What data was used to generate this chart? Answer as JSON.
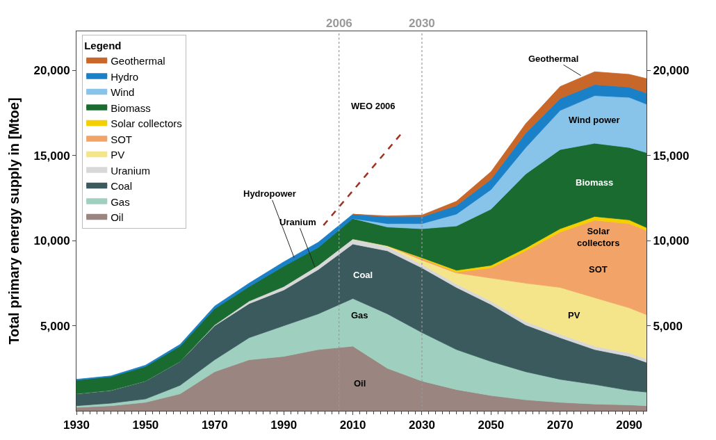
{
  "chart_data": {
    "type": "area",
    "stacked": true,
    "ylabel": "Total primary energy supply in [Mtoe]",
    "legend_title": "Legend",
    "legend": "top left",
    "x": [
      1930,
      1940,
      1950,
      1960,
      1970,
      1980,
      1990,
      2000,
      2010,
      2020,
      2030,
      2040,
      2050,
      2060,
      2070,
      2080,
      2090,
      2095
    ],
    "xlim": [
      1930,
      2095
    ],
    "xticks": [
      1930,
      1950,
      1970,
      1990,
      2010,
      2030,
      2050,
      2070,
      2090
    ],
    "ylim": [
      0,
      22300
    ],
    "yticks": [
      {
        "value": 5000,
        "label": "5,000"
      },
      {
        "value": 10000,
        "label": "10,000"
      },
      {
        "value": 15000,
        "label": "15,000"
      },
      {
        "value": 20000,
        "label": "20,000"
      }
    ],
    "y2lim": [
      0,
      22300
    ],
    "y2ticks": [
      {
        "value": 5000,
        "label": "5,000"
      },
      {
        "value": 10000,
        "label": "10,000"
      },
      {
        "value": 15000,
        "label": "15,000"
      },
      {
        "value": 20000,
        "label": "20,000"
      }
    ],
    "series": [
      {
        "name": "Oil",
        "color": "#9a8580",
        "values": [
          200,
          300,
          500,
          1000,
          2300,
          3000,
          3200,
          3600,
          3800,
          2500,
          1750,
          1250,
          900,
          650,
          500,
          400,
          350,
          300
        ]
      },
      {
        "name": "Gas",
        "color": "#9fcfbf",
        "values": [
          100,
          150,
          200,
          500,
          700,
          1300,
          1800,
          2100,
          2800,
          3200,
          2850,
          2350,
          2000,
          1650,
          1350,
          1150,
          850,
          800
        ]
      },
      {
        "name": "Coal",
        "color": "#3b5a5e",
        "values": [
          700,
          750,
          1050,
          1400,
          2000,
          2000,
          2100,
          2600,
          3200,
          3700,
          3800,
          3650,
          3350,
          2750,
          2450,
          2050,
          2000,
          1750
        ]
      },
      {
        "name": "Uranium",
        "color": "#d8d8d8",
        "values": [
          0,
          0,
          0,
          0,
          50,
          150,
          200,
          250,
          300,
          250,
          200,
          200,
          200,
          200,
          200,
          200,
          200,
          200
        ]
      },
      {
        "name": "PV",
        "color": "#f5e58a",
        "values": [
          null,
          null,
          null,
          null,
          null,
          null,
          null,
          null,
          0,
          50,
          250,
          650,
          1350,
          2250,
          2750,
          2850,
          2650,
          2600
        ]
      },
      {
        "name": "SOT",
        "color": "#f2a468",
        "values": [
          null,
          null,
          null,
          null,
          null,
          null,
          null,
          null,
          null,
          0,
          100,
          50,
          600,
          1900,
          3250,
          4550,
          4950,
          4950
        ]
      },
      {
        "name": "Solar collectors",
        "color": "#f5d000",
        "values": [
          null,
          null,
          null,
          null,
          null,
          null,
          null,
          null,
          null,
          0,
          50,
          110,
          150,
          160,
          200,
          220,
          220,
          170
        ]
      },
      {
        "name": "Biomass",
        "color": "#1a6b2f",
        "values": [
          800,
          800,
          850,
          900,
          950,
          850,
          1200,
          1050,
          1200,
          1100,
          1700,
          2600,
          3300,
          4350,
          4650,
          4300,
          4250,
          4400
        ]
      },
      {
        "name": "Wind",
        "color": "#88c4ea",
        "values": [
          null,
          null,
          null,
          null,
          null,
          null,
          null,
          null,
          0,
          200,
          300,
          700,
          1150,
          1550,
          2300,
          2800,
          2950,
          2850
        ]
      },
      {
        "name": "Hydro",
        "color": "#1a80c8",
        "values": [
          50,
          50,
          80,
          100,
          150,
          200,
          250,
          300,
          250,
          400,
          400,
          500,
          600,
          850,
          700,
          650,
          600,
          650
        ]
      },
      {
        "name": "Geothermal",
        "color": "#c8672a",
        "values": [
          null,
          null,
          null,
          null,
          null,
          null,
          null,
          null,
          0,
          50,
          100,
          250,
          450,
          550,
          700,
          750,
          750,
          850
        ]
      },
      {
        "type": "line",
        "color": "#a03020",
        "line_style": "dashed",
        "x": [
          2001.5,
          2024.5
        ],
        "values": [
          10900,
          16400
        ]
      }
    ],
    "ref_lines": [
      {
        "axis": "x",
        "value": 2006,
        "label": "2006",
        "color": "#999999",
        "line_style": "dotted"
      },
      {
        "axis": "x",
        "value": 2030,
        "label": "2030",
        "color": "#999999",
        "line_style": "dotted"
      }
    ],
    "annotations": [
      "Oil",
      "Gas",
      "Coal",
      "PV",
      "SOT",
      "Solar\ncollectors",
      "Biomass",
      "Wind power",
      "Geothermal",
      {
        "text": "Hydropower",
        "x": 1993,
        "y": 9000
      },
      {
        "text": "Uranium",
        "x": 1999,
        "y": 8450
      },
      "WEO 2006"
    ]
  }
}
